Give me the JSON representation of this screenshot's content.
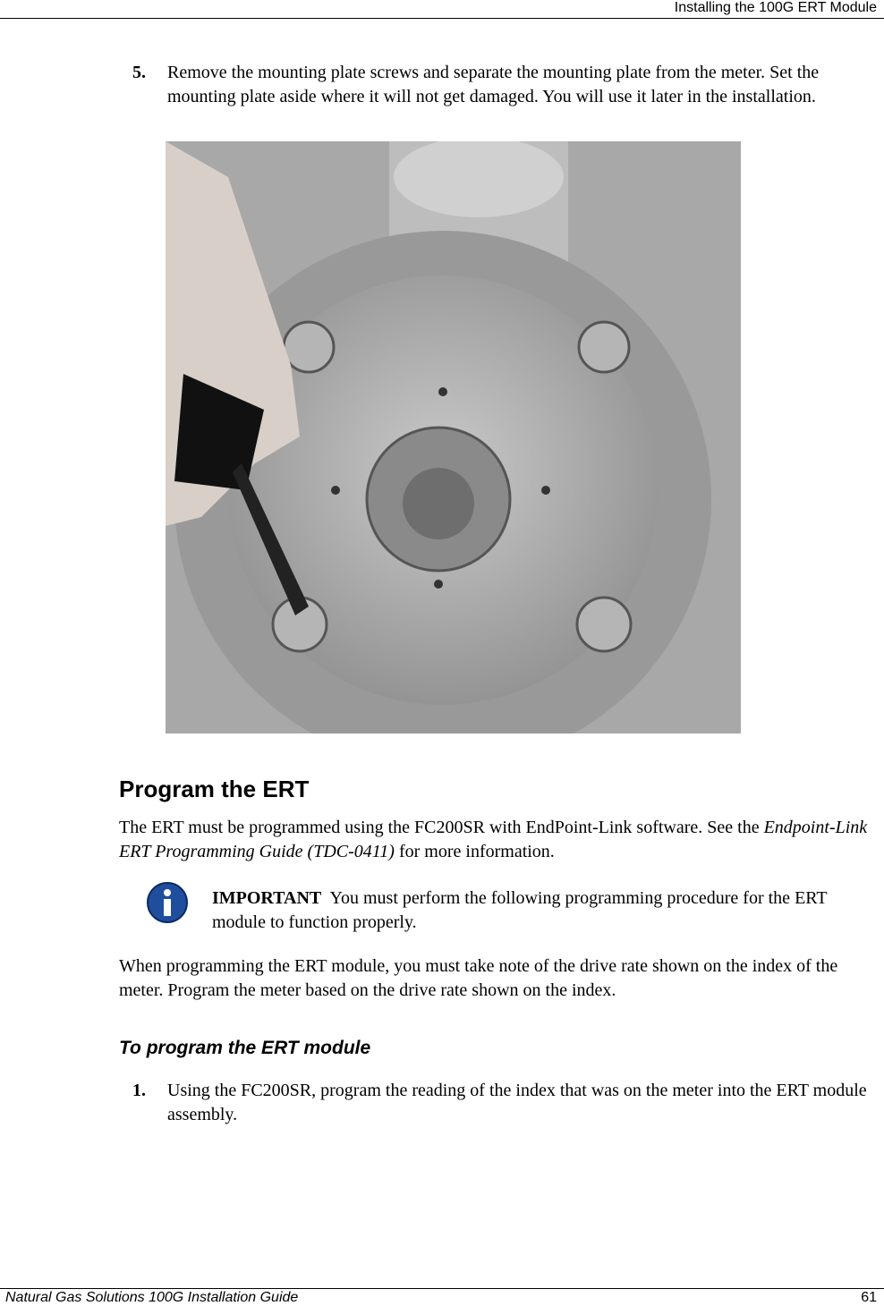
{
  "header": {
    "title": "Installing the 100G ERT Module"
  },
  "step_5": {
    "number": "5.",
    "text": "Remove the mounting plate screws and separate the mounting plate from the meter. Set the mounting plate aside where it will not get damaged. You will use it later in the installation."
  },
  "section": {
    "heading": "Program the ERT",
    "paragraph_1": {
      "before": "The ERT must be programmed using the FC200SR with EndPoint-Link software. See the ",
      "italic": "Endpoint-Link ERT Programming Guide (TDC-0411)",
      "after": " for more information."
    },
    "note": {
      "label": "IMPORTANT",
      "text": "You must perform the following programming procedure for the ERT module to function properly."
    },
    "paragraph_2": "When programming the ERT module, you must take note of the drive rate shown on the index of the meter. Program the meter based on the drive rate shown on the index."
  },
  "procedure": {
    "heading": "To program the ERT module",
    "step_1": {
      "number": "1.",
      "text": "Using the FC200SR, program the reading of the index that was on the meter into the ERT module assembly."
    }
  },
  "footer": {
    "title": "Natural Gas Solutions 100G Installation Guide",
    "page": 61
  }
}
